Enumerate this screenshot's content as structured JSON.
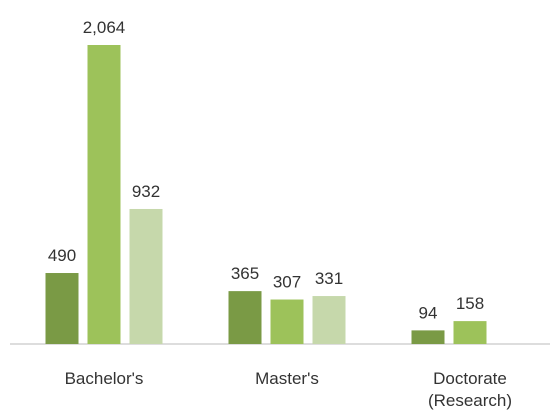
{
  "chart_data": {
    "type": "bar",
    "categories": [
      "Bachelor's",
      "Master's",
      "Doctorate (Research)"
    ],
    "series": [
      {
        "color": "#7a9a45",
        "values": [
          490,
          365,
          94
        ],
        "value_labels": [
          "490",
          "365",
          "94"
        ]
      },
      {
        "color": "#9dc25a",
        "values": [
          2064,
          307,
          158
        ],
        "value_labels": [
          "2,064",
          "307",
          "158"
        ]
      },
      {
        "color": "#c6d8ab",
        "values": [
          932,
          331,
          null
        ],
        "value_labels": [
          "932",
          "331",
          null
        ]
      }
    ]
  }
}
